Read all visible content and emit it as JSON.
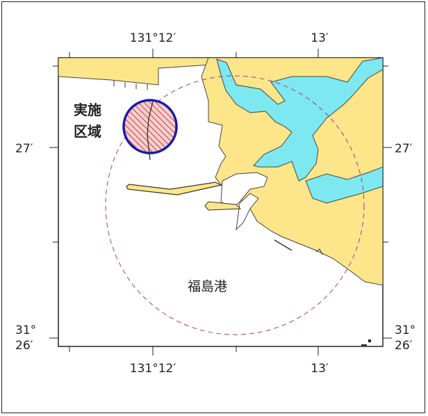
{
  "map": {
    "top_labels": {
      "lon_left": "131°12′",
      "lon_right": "13′"
    },
    "bottom_labels": {
      "lon_left": "131°12′",
      "lon_right": "13′"
    },
    "left_labels": {
      "lat_upper": "27′",
      "lat_lower_deg": "31°",
      "lat_lower_min": "26′"
    },
    "right_labels": {
      "lat_upper": "27′",
      "lat_lower_deg": "31°",
      "lat_lower_min": "26′"
    },
    "area_label_line1": "実施",
    "area_label_line2": "区域",
    "port_name": "福島港",
    "colors": {
      "land": "#fde68a",
      "water_inland": "#7ee8f0",
      "sea": "#ffffff",
      "survey_circle_stroke": "#1a1aa8",
      "survey_hatch": "#d23c3c",
      "range_circle": "#9a3a9a",
      "frame": "#222222"
    }
  }
}
